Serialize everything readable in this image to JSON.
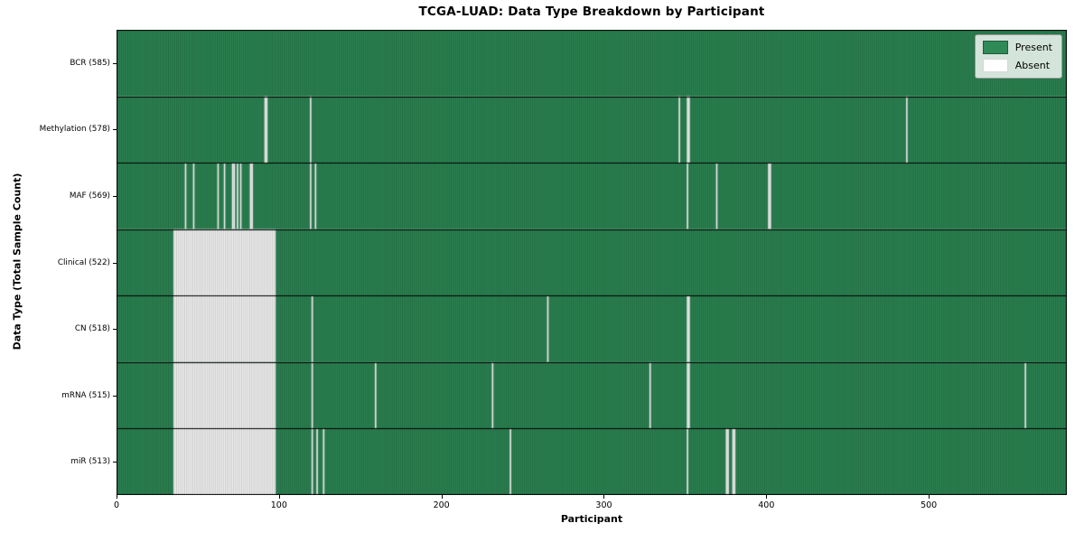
{
  "title": "TCGA-LUAD: Data Type Breakdown by Participant",
  "legend": {
    "present_label": "Present",
    "absent_label": "Absent"
  },
  "chart_data": {
    "type": "heatmap",
    "title": "TCGA-LUAD: Data Type Breakdown by Participant",
    "xlabel": "Participant",
    "ylabel": "Data Type (Total Sample Count)",
    "x_range": [
      0,
      585
    ],
    "n_participants": 585,
    "x_ticks": [
      0,
      100,
      200,
      300,
      400,
      500
    ],
    "grid": false,
    "legend_position": "upper right",
    "legend": [
      {
        "label": "Present",
        "color": "#2e8b57"
      },
      {
        "label": "Absent",
        "color": "#ffffff"
      }
    ],
    "colors": {
      "present": "#2e8b57",
      "absent": "#ffffff",
      "cell_edge": "rgba(0,0,0,0.40)",
      "row_separator": "#000000",
      "spine": "#000000"
    },
    "rows": [
      {
        "label": "BCR",
        "count": 585,
        "absent_ranges": []
      },
      {
        "label": "Methylation",
        "count": 578,
        "absent_ranges": [
          [
            91,
            92
          ],
          [
            119,
            119
          ],
          [
            346,
            346
          ],
          [
            351,
            352
          ],
          [
            486,
            486
          ]
        ]
      },
      {
        "label": "MAF",
        "count": 569,
        "absent_ranges": [
          [
            42,
            42
          ],
          [
            47,
            47
          ],
          [
            62,
            62
          ],
          [
            66,
            66
          ],
          [
            71,
            72
          ],
          [
            74,
            74
          ],
          [
            76,
            76
          ],
          [
            82,
            83
          ],
          [
            119,
            119
          ],
          [
            122,
            122
          ],
          [
            351,
            351
          ],
          [
            369,
            369
          ],
          [
            401,
            402
          ]
        ]
      },
      {
        "label": "Clinical",
        "count": 522,
        "absent_ranges": [
          [
            35,
            97
          ]
        ]
      },
      {
        "label": "CN",
        "count": 518,
        "absent_ranges": [
          [
            35,
            97
          ],
          [
            120,
            120
          ],
          [
            265,
            265
          ],
          [
            351,
            352
          ]
        ]
      },
      {
        "label": "mRNA",
        "count": 515,
        "absent_ranges": [
          [
            35,
            97
          ],
          [
            120,
            120
          ],
          [
            159,
            159
          ],
          [
            231,
            231
          ],
          [
            328,
            328
          ],
          [
            351,
            352
          ],
          [
            559,
            559
          ]
        ]
      },
      {
        "label": "miR",
        "count": 513,
        "absent_ranges": [
          [
            35,
            97
          ],
          [
            120,
            120
          ],
          [
            123,
            123
          ],
          [
            127,
            127
          ],
          [
            242,
            242
          ],
          [
            351,
            351
          ],
          [
            375,
            376
          ],
          [
            379,
            380
          ]
        ]
      }
    ]
  }
}
